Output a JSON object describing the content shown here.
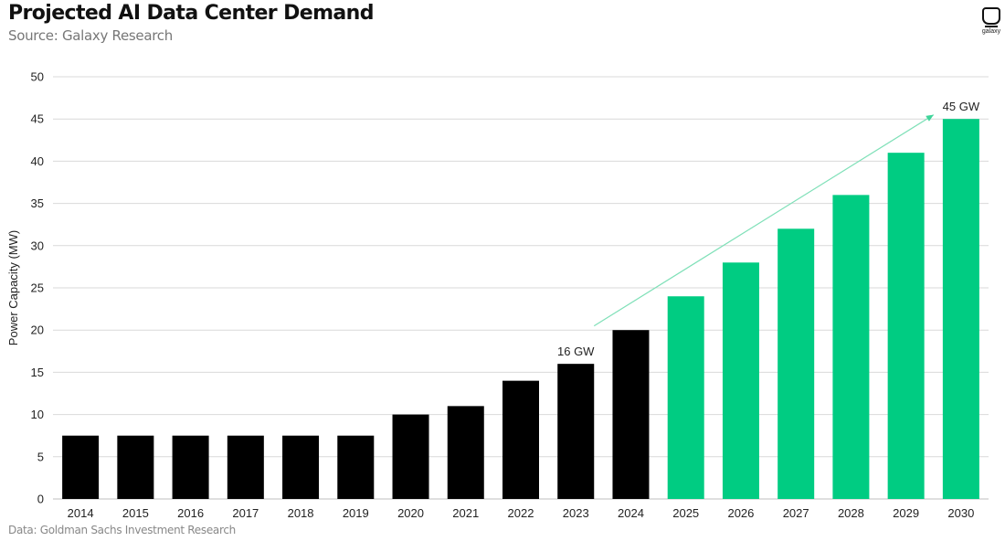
{
  "header": {
    "title": "Projected AI Data Center Demand",
    "subtitle": "Source: Galaxy Research"
  },
  "footer": {
    "note": "Data: Goldman Sachs Investment Research"
  },
  "logo": {
    "icon": "galaxy-logo-icon",
    "text": "galaxy"
  },
  "colors": {
    "historical": "#000000",
    "projected": "#00cc82",
    "grid": "#d9d9d9",
    "arrow": "#7fe0b8"
  },
  "chart_data": {
    "type": "bar",
    "title": "Projected AI Data Center Demand",
    "xlabel": "",
    "ylabel": "Power Capacity (MW)",
    "ylim": [
      0,
      50
    ],
    "yticks": [
      0,
      5,
      10,
      15,
      20,
      25,
      30,
      35,
      40,
      45,
      50
    ],
    "grid": true,
    "categories": [
      "2014",
      "2015",
      "2016",
      "2017",
      "2018",
      "2019",
      "2020",
      "2021",
      "2022",
      "2023",
      "2024",
      "2025",
      "2026",
      "2027",
      "2028",
      "2029",
      "2030"
    ],
    "values": [
      7.5,
      7.5,
      7.5,
      7.5,
      7.5,
      7.5,
      10,
      11,
      14,
      16,
      20,
      24,
      28,
      32,
      36,
      41,
      45
    ],
    "series_split": {
      "historical_last": "2024",
      "projected_first": "2025"
    },
    "annotations": [
      {
        "category": "2023",
        "text": "16 GW"
      },
      {
        "category": "2030",
        "text": "45 GW"
      }
    ],
    "trend_arrow": {
      "from_category": "2023",
      "from_value": 20.5,
      "to_category": "2030",
      "to_value": 45.5
    }
  }
}
